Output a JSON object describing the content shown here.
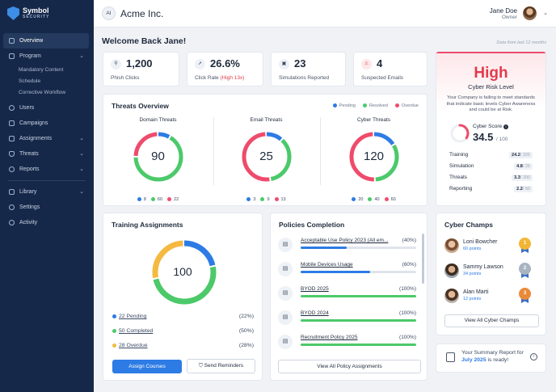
{
  "brand": {
    "name": "Symbol",
    "tagline": "SECURITY"
  },
  "sidebar": {
    "items": [
      {
        "label": "Overview"
      },
      {
        "label": "Program"
      },
      {
        "label": "Mandatory Content"
      },
      {
        "label": "Schedule"
      },
      {
        "label": "Corrective Workflow"
      },
      {
        "label": "Users"
      },
      {
        "label": "Campaigns"
      },
      {
        "label": "Assignments"
      },
      {
        "label": "Threats"
      },
      {
        "label": "Reports"
      },
      {
        "label": "Library"
      },
      {
        "label": "Settings"
      },
      {
        "label": "Activity"
      }
    ]
  },
  "header": {
    "org_initials": "AI",
    "org_name": "Acme Inc.",
    "user_name": "Jane Doe",
    "user_role": "Owner"
  },
  "welcome": {
    "title": "Welcome Back Jane!",
    "note": "Data from last 12 months"
  },
  "stats": [
    {
      "value": "1,200",
      "label": "Phish Clicks"
    },
    {
      "value": "26.6%",
      "label": "Click Rate",
      "extra": "(High 13x)"
    },
    {
      "value": "23",
      "label": "Simulations Reported"
    },
    {
      "value": "4",
      "label": "Suspected Emails"
    }
  ],
  "threats_overview": {
    "title": "Threats Overview",
    "legend": [
      "Pending",
      "Resolved",
      "Overdue"
    ],
    "groups": [
      {
        "label": "Domain Threats",
        "total": "90",
        "pending": 8,
        "resolved": 60,
        "overdue": 22,
        "pending_text": "8",
        "resolved_text": "60",
        "overdue_text": "22"
      },
      {
        "label": "Email Threats",
        "total": "25",
        "pending": 3,
        "resolved": 9,
        "overdue": 13,
        "pending_text": "3",
        "resolved_text": "9",
        "overdue_text": "13"
      },
      {
        "label": "Cyber Threats",
        "total": "120",
        "pending": 20,
        "resolved": 40,
        "overdue": 60,
        "pending_text": "20",
        "resolved_text": "40",
        "overdue_text": "60"
      }
    ]
  },
  "risk": {
    "level": "High",
    "title": "Cyber Risk Level",
    "description": "Your Company is failing to meet standards that indicate basic levels Cyber Awareness and could be at Risk.",
    "score_label": "Cyber Score",
    "score": "34.5",
    "score_max": "/ 100",
    "score_value": 34.5,
    "rows": [
      {
        "label": "Training",
        "value": "24.2",
        "max": "/ 325"
      },
      {
        "label": "Simulation",
        "value": "4.8",
        "max": "/ 25"
      },
      {
        "label": "Threats",
        "value": "3.3",
        "max": "/ 200"
      },
      {
        "label": "Reporting",
        "value": "2.2",
        "max": "/ 50"
      }
    ]
  },
  "training": {
    "title": "Training Assignments",
    "total": "100",
    "rows": [
      {
        "count": "22",
        "label": "Pending",
        "pct": "(22%)",
        "value": 22
      },
      {
        "count": "50",
        "label": "Completed",
        "pct": "(50%)",
        "value": 50
      },
      {
        "count": "28",
        "label": "Overdue",
        "pct": "(28%)",
        "value": 28
      }
    ],
    "assign_label": "Assign Courses",
    "remind_label": "Send Reminders"
  },
  "policies": {
    "title": "Policies Completion",
    "items": [
      {
        "name": "Acceptable Use Policy 2023 (All em...",
        "pct": "(40%)",
        "value": 40
      },
      {
        "name": "Mobile Devices Usage",
        "pct": "(60%)",
        "value": 60
      },
      {
        "name": "BYOD 2025",
        "pct": "(100%)",
        "value": 100
      },
      {
        "name": "BYOD 2024",
        "pct": "(100%)",
        "value": 100
      },
      {
        "name": "Recruitment Policy 2025",
        "pct": "(100%)",
        "value": 100
      }
    ],
    "view_all": "View All Policy Assignments"
  },
  "champs": {
    "title": "Cyber Champs",
    "items": [
      {
        "name": "Loni Bowcher",
        "points": "60 points",
        "rank": "1"
      },
      {
        "name": "Sammy Lawson",
        "points": "34 points",
        "rank": "2"
      },
      {
        "name": "Alan Marti",
        "points": "12 points",
        "rank": "3"
      }
    ],
    "view_all": "View All Cyber Champs"
  },
  "summary": {
    "text": "Your Summary Report for",
    "month": "July 2025",
    "suffix": "is ready!"
  },
  "colors": {
    "pending": "#2d7be5",
    "resolved": "#4cc96a",
    "overdue": "#ef4b6c",
    "training_pending": "#2d7be5",
    "training_completed": "#4cc96a",
    "training_overdue": "#f5b942"
  }
}
